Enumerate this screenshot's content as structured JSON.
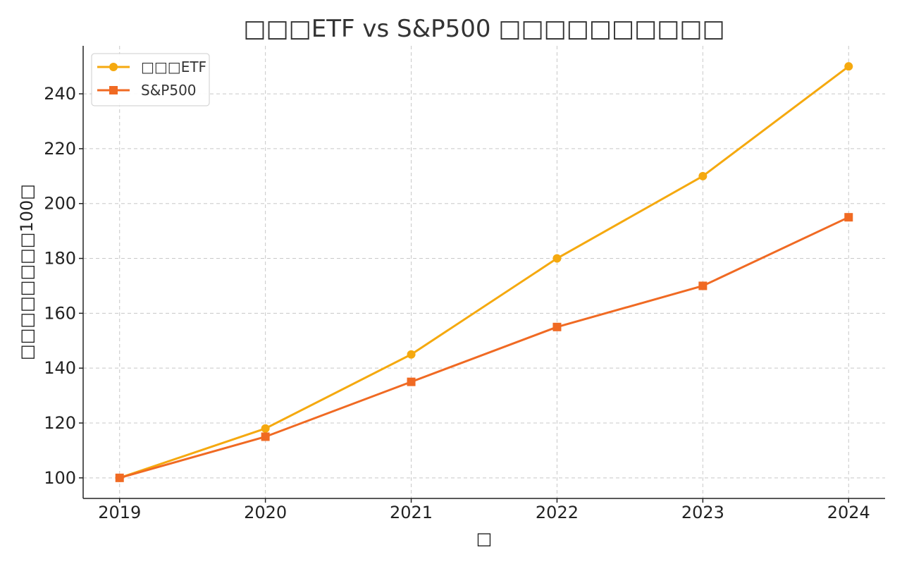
{
  "chart_data": {
    "type": "line",
    "title": "□□□ETF vs S&P500 □□□□□□□□□□",
    "xlabel": "□",
    "ylabel": "□□□□□□□□100□",
    "categories": [
      "2019",
      "2020",
      "2021",
      "2022",
      "2023",
      "2024"
    ],
    "x": [
      2019,
      2020,
      2021,
      2022,
      2023,
      2024
    ],
    "xlim": [
      2018.75,
      2024.25
    ],
    "ylim": [
      92.5,
      257.5
    ],
    "yticks": [
      100,
      120,
      140,
      160,
      180,
      200,
      220,
      240
    ],
    "grid": true,
    "legend_position": "top-left",
    "series": [
      {
        "name": "□□□ETF",
        "values": [
          100,
          118,
          145,
          180,
          210,
          250
        ],
        "color": "#f5a90f",
        "marker": "circle"
      },
      {
        "name": "S&P500",
        "values": [
          100,
          115,
          135,
          155,
          170,
          195
        ],
        "color": "#f06a23",
        "marker": "square"
      }
    ]
  }
}
